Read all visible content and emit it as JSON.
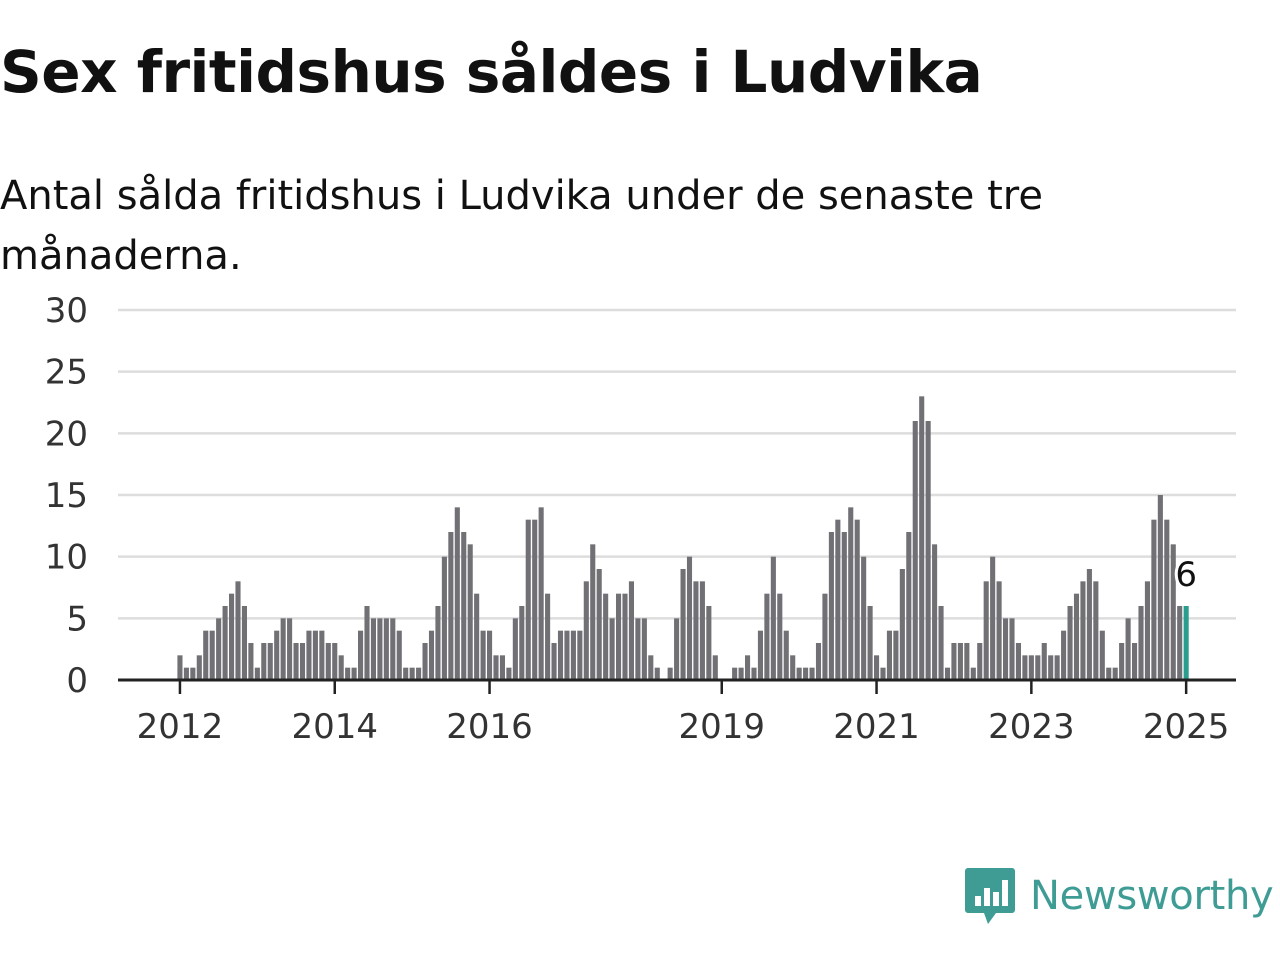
{
  "title": "Sex fritidshus såldes i Ludvika",
  "subtitle": "Antal sålda fritidshus i Ludvika under de senaste tre månaderna.",
  "brand": {
    "name": "Newsworthy",
    "color": "#3e9c95",
    "icon": "newsworthy-logo-icon"
  },
  "colors": {
    "bar": "#717075",
    "highlight": "#2a9d8f",
    "grid": "#dddddd",
    "axis": "#222222"
  },
  "chart_data": {
    "type": "bar",
    "title": "Sex fritidshus såldes i Ludvika",
    "subtitle": "Antal sålda fritidshus i Ludvika under de senaste tre månaderna.",
    "x_start": "2011-11",
    "x_unit": "month",
    "ylim": [
      0,
      30
    ],
    "yticks": [
      0,
      5,
      10,
      15,
      20,
      25,
      30
    ],
    "xticks": [
      {
        "label": "2012",
        "index": 2
      },
      {
        "label": "2014",
        "index": 26
      },
      {
        "label": "2016",
        "index": 50
      },
      {
        "label": "2019",
        "index": 86
      },
      {
        "label": "2021",
        "index": 110
      },
      {
        "label": "2023",
        "index": 134
      },
      {
        "label": "2025",
        "index": 158
      }
    ],
    "grid": true,
    "legend": "none",
    "highlight_label": "6",
    "values": [
      0,
      0,
      2,
      1,
      1,
      2,
      4,
      4,
      5,
      6,
      7,
      8,
      6,
      3,
      1,
      3,
      3,
      4,
      5,
      5,
      3,
      3,
      4,
      4,
      4,
      3,
      3,
      2,
      1,
      1,
      4,
      6,
      5,
      5,
      5,
      5,
      4,
      1,
      1,
      1,
      3,
      4,
      6,
      10,
      12,
      14,
      12,
      11,
      7,
      4,
      4,
      2,
      2,
      1,
      5,
      6,
      13,
      13,
      14,
      7,
      3,
      4,
      4,
      4,
      4,
      8,
      11,
      9,
      7,
      5,
      7,
      7,
      8,
      5,
      5,
      2,
      1,
      0,
      1,
      5,
      9,
      10,
      8,
      8,
      6,
      2,
      0,
      0,
      1,
      1,
      2,
      1,
      4,
      7,
      10,
      7,
      4,
      2,
      1,
      1,
      1,
      3,
      7,
      12,
      13,
      12,
      14,
      13,
      10,
      6,
      2,
      1,
      4,
      4,
      9,
      12,
      21,
      23,
      21,
      11,
      6,
      1,
      3,
      3,
      3,
      1,
      3,
      8,
      10,
      8,
      5,
      5,
      3,
      2,
      2,
      2,
      3,
      2,
      2,
      4,
      6,
      7,
      8,
      9,
      8,
      4,
      1,
      1,
      3,
      5,
      3,
      6,
      8,
      13,
      15,
      13,
      11,
      6,
      6
    ]
  }
}
